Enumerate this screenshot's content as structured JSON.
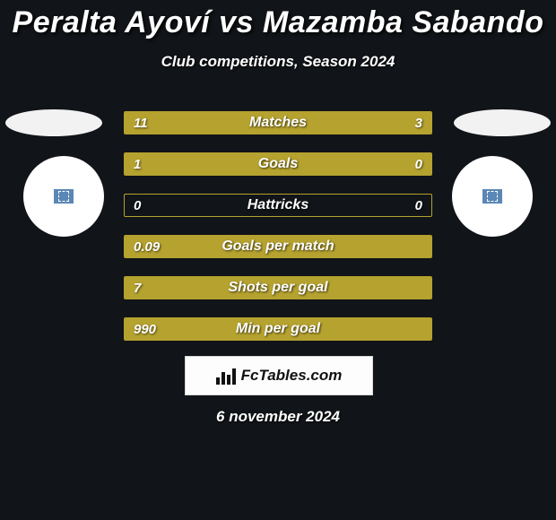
{
  "title": "Peralta Ayoví vs Mazamba Sabando",
  "subtitle": "Club competitions, Season 2024",
  "date": "6 november 2024",
  "logo_text": "FcTables.com",
  "colors": {
    "background": "#111418",
    "bar_fill": "#b5a22f",
    "bar_border": "#b5a22f",
    "text": "#ffffff",
    "logo_bg": "#fdfdfd",
    "logo_text": "#111111",
    "avatar_bg": "#ffffff",
    "avatar_inner": "#5a87b5",
    "flag_bg": "#f2f2f2"
  },
  "rows": [
    {
      "label": "Matches",
      "left_val": "11",
      "right_val": "3",
      "left_pct": 75,
      "right_pct": 25
    },
    {
      "label": "Goals",
      "left_val": "1",
      "right_val": "0",
      "left_pct": 75,
      "right_pct": 25
    },
    {
      "label": "Hattricks",
      "left_val": "0",
      "right_val": "0",
      "left_pct": 0,
      "right_pct": 0
    },
    {
      "label": "Goals per match",
      "left_val": "0.09",
      "right_val": "",
      "left_pct": 100,
      "right_pct": 0
    },
    {
      "label": "Shots per goal",
      "left_val": "7",
      "right_val": "",
      "left_pct": 100,
      "right_pct": 0
    },
    {
      "label": "Min per goal",
      "left_val": "990",
      "right_val": "",
      "left_pct": 100,
      "right_pct": 0
    }
  ]
}
